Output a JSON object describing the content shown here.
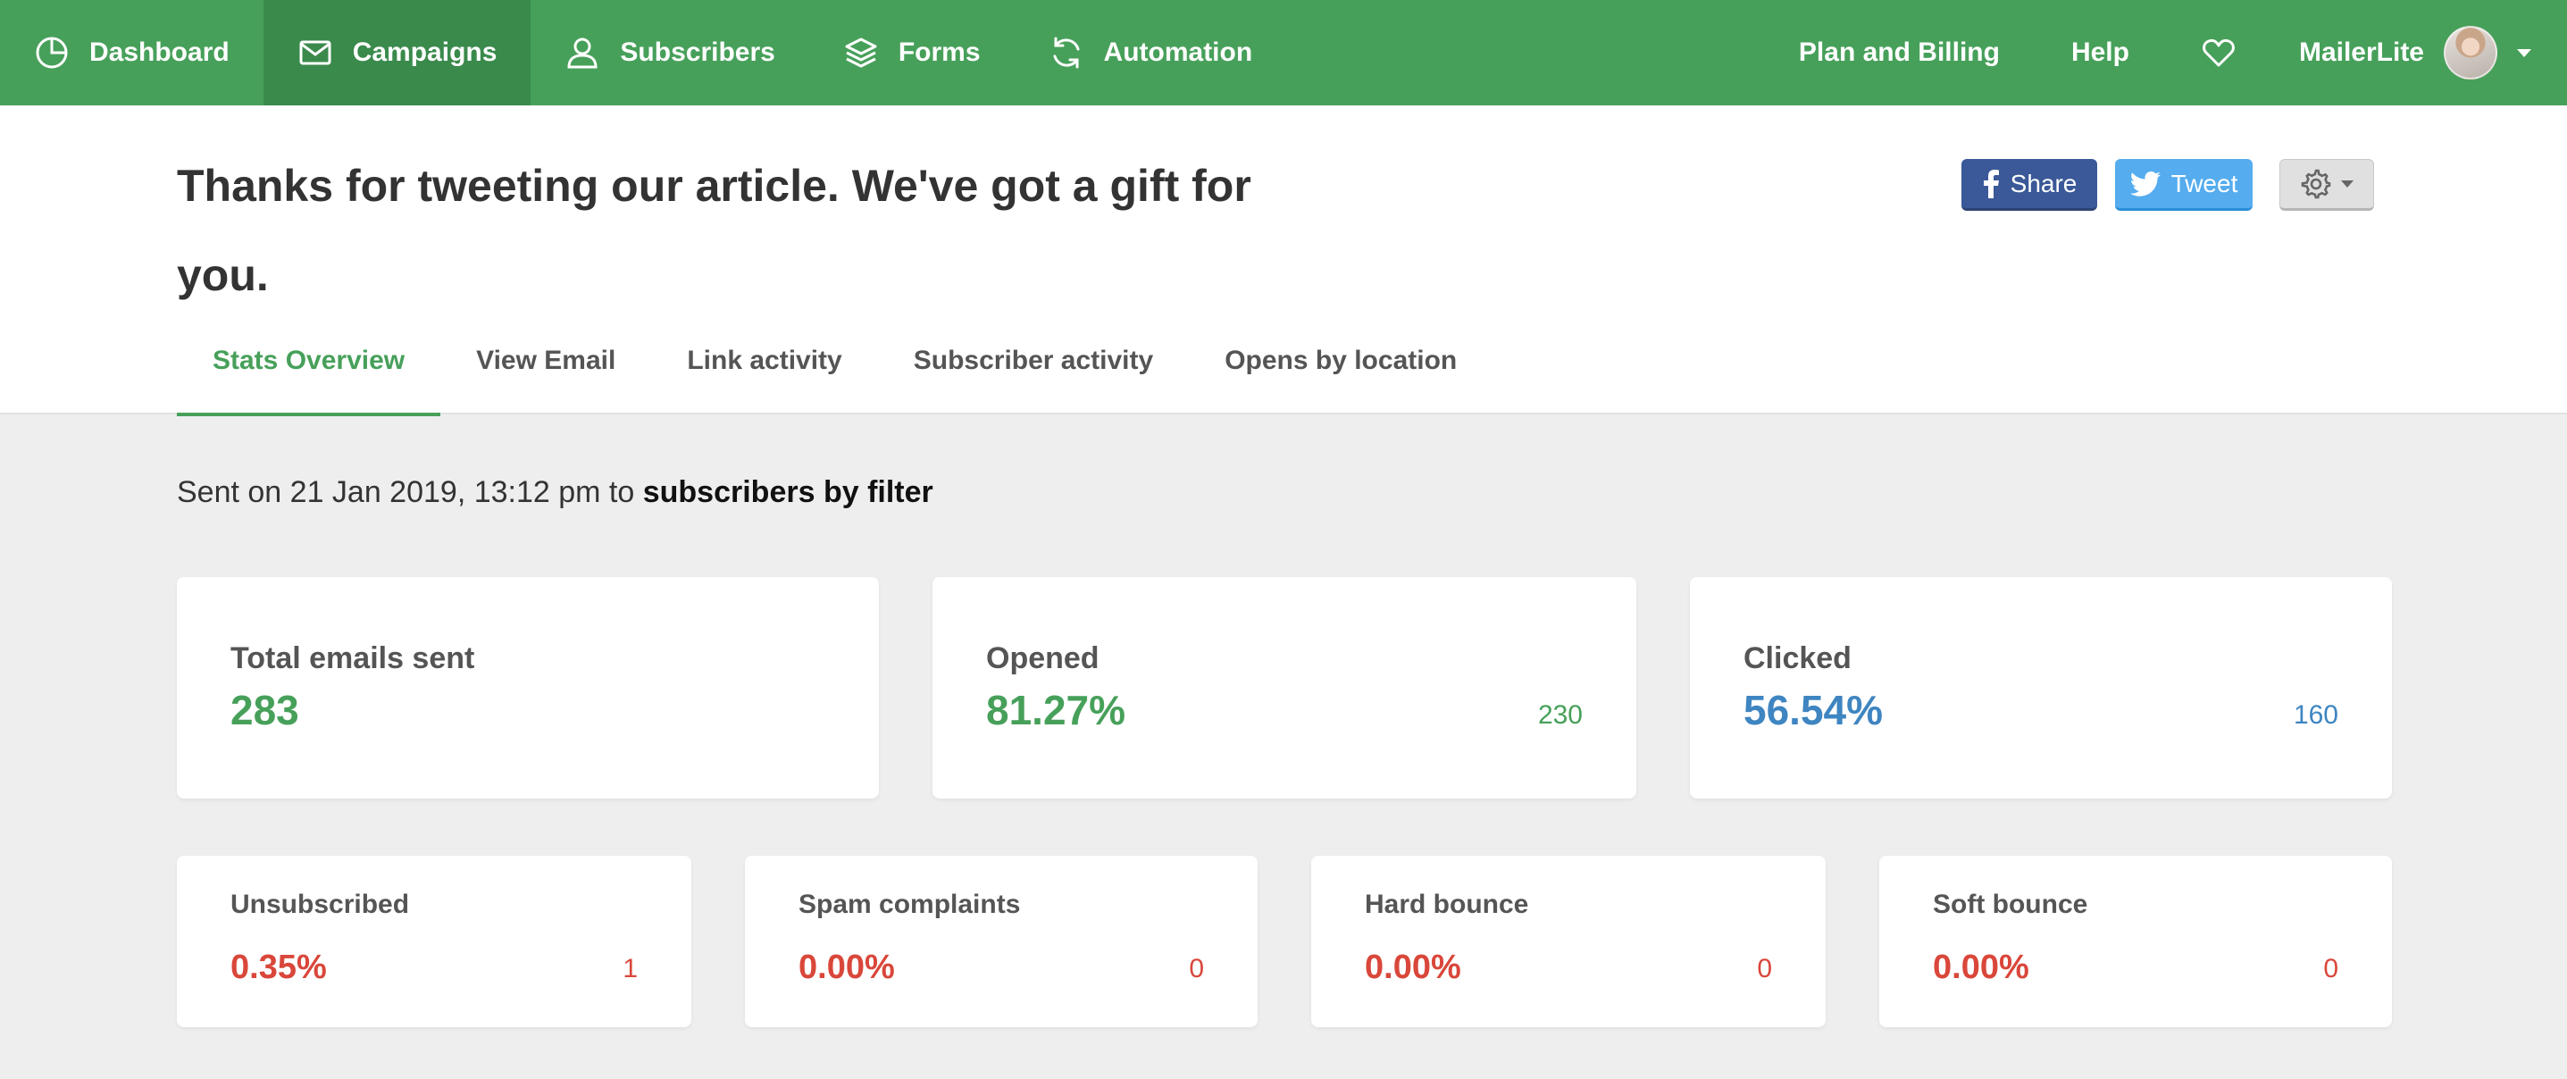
{
  "nav": {
    "left": [
      {
        "label": "Dashboard",
        "icon": "pie-chart-icon"
      },
      {
        "label": "Campaigns",
        "icon": "envelope-icon"
      },
      {
        "label": "Subscribers",
        "icon": "user-icon"
      },
      {
        "label": "Forms",
        "icon": "layers-icon"
      },
      {
        "label": "Automation",
        "icon": "refresh-icon"
      }
    ],
    "right": {
      "billing": "Plan and Billing",
      "help": "Help",
      "account": "MailerLite"
    },
    "active_color": "#3a8a4c",
    "bg_color": "#47a05a"
  },
  "header": {
    "title": "Thanks for tweeting our article. We've got a gift for you.",
    "share_label": "Share",
    "tweet_label": "Tweet"
  },
  "tabs": [
    {
      "label": "Stats Overview"
    },
    {
      "label": "View Email"
    },
    {
      "label": "Link activity"
    },
    {
      "label": "Subscriber activity"
    },
    {
      "label": "Opens by location"
    }
  ],
  "sent": {
    "prefix": "Sent on 21 Jan 2019, 13:12 pm to ",
    "target": "subscribers by filter"
  },
  "stats_main": [
    {
      "label": "Total emails sent",
      "value": "283",
      "count": ""
    },
    {
      "label": "Opened",
      "value": "81.27%",
      "count": "230"
    },
    {
      "label": "Clicked",
      "value": "56.54%",
      "count": "160"
    }
  ],
  "stats_secondary": [
    {
      "label": "Unsubscribed",
      "value": "0.35%",
      "count": "1"
    },
    {
      "label": "Spam complaints",
      "value": "0.00%",
      "count": "0"
    },
    {
      "label": "Hard bounce",
      "value": "0.00%",
      "count": "0"
    },
    {
      "label": "Soft bounce",
      "value": "0.00%",
      "count": "0"
    }
  ],
  "colors": {
    "positive": "#47a05a",
    "clicked": "#3e85c1",
    "negative": "#d9473a"
  }
}
